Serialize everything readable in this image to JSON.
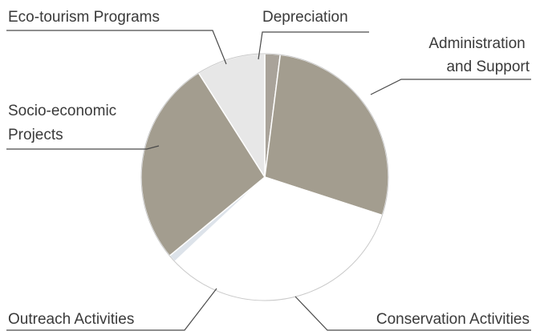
{
  "chart_data": {
    "type": "pie",
    "title": "",
    "slices": [
      {
        "label": "Depreciation",
        "label_lines": [
          "Depreciation"
        ],
        "value": 2,
        "color": "#a9a39a"
      },
      {
        "label": "Administration and Support",
        "label_lines": [
          "Administration",
          "and Support"
        ],
        "value": 28,
        "color": "#a39d8f"
      },
      {
        "label": "Conservation Activities",
        "label_lines": [
          "Conservation Activities"
        ],
        "value": 33,
        "color": "#ffffff"
      },
      {
        "label": "Outreach Activities",
        "label_lines": [
          "Outreach Activities"
        ],
        "value": 1,
        "color": "#dde3ea"
      },
      {
        "label": "Socio-economic Projects",
        "label_lines": [
          "Socio-economic",
          "Projects"
        ],
        "value": 27,
        "color": "#a39d8f"
      },
      {
        "label": "Eco-tourism Programs",
        "label_lines": [
          "Eco-tourism Programs"
        ],
        "value": 9,
        "color": "#e7e7e7"
      }
    ]
  }
}
